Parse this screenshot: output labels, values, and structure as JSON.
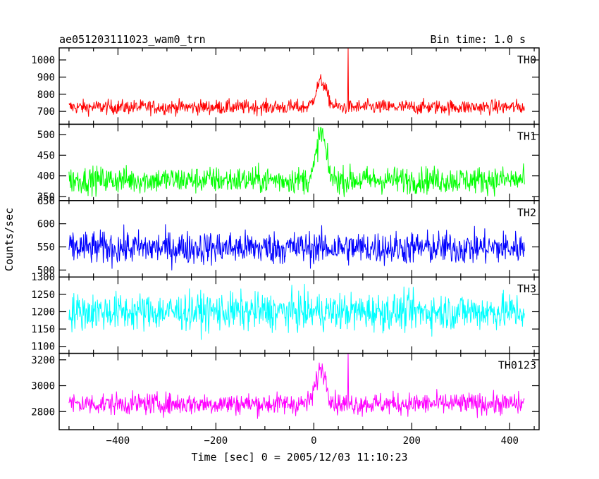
{
  "header": {
    "left_title": "ae051203111023_wam0_trn",
    "right_title": "Bin time: 1.0 s"
  },
  "axes": {
    "ylabel": "Counts/sec",
    "xlabel": "Time [sec] 0 = 2005/12/03 11:10:23"
  },
  "chart_data": {
    "type": "line",
    "title": "ae051203111023_wam0_trn",
    "subtitle": "Bin time: 1.0 s",
    "xlabel": "Time [sec] 0 = 2005/12/03 11:10:23",
    "ylabel": "Counts/sec",
    "xlim": [
      -520,
      460
    ],
    "x_range": [
      -500,
      430
    ],
    "x_step": 1,
    "x_ticks": [
      -400,
      -200,
      0,
      200,
      400
    ],
    "x_tick_labels": [
      "−400",
      "−200",
      "0",
      "200",
      "400"
    ],
    "grid": false,
    "panels": [
      {
        "name": "TH0",
        "color": "#ff0000",
        "ylim": [
          625,
          1070
        ],
        "y_ticks": [
          700,
          800,
          900,
          1000
        ],
        "y_tick_labels": [
          "700",
          "800",
          "900",
          "1000"
        ],
        "baseline": 725,
        "amplitude": 35,
        "burst": {
          "center": 15,
          "peak": 875,
          "width": 15
        },
        "spikes": [
          {
            "x": 70,
            "value": 1070
          }
        ]
      },
      {
        "name": "TH1",
        "color": "#00ff00",
        "ylim": [
          340,
          525
        ],
        "y_ticks": [
          350,
          400,
          450,
          500
        ],
        "y_tick_labels": [
          "350",
          "400",
          "450",
          "500"
        ],
        "baseline": 390,
        "amplitude": 27,
        "burst": {
          "center": 15,
          "peak": 505,
          "width": 13
        },
        "spikes": []
      },
      {
        "name": "TH2",
        "color": "#0000ff",
        "ylim": [
          485,
          650
        ],
        "y_ticks": [
          500,
          550,
          600,
          650
        ],
        "y_tick_labels": [
          "500",
          "550",
          "600",
          "650"
        ],
        "baseline": 548,
        "amplitude": 30,
        "burst": null,
        "spikes": []
      },
      {
        "name": "TH3",
        "color": "#00ffff",
        "ylim": [
          1080,
          1300
        ],
        "y_ticks": [
          1100,
          1150,
          1200,
          1250,
          1300
        ],
        "y_tick_labels": [
          "1100",
          "1150",
          "1200",
          "1250",
          "1300"
        ],
        "baseline": 1200,
        "amplitude": 45,
        "burst": null,
        "spikes": []
      },
      {
        "name": "TH0123",
        "color": "#ff00ff",
        "ylim": [
          2660,
          3250
        ],
        "y_ticks": [
          2800,
          3000,
          3200
        ],
        "y_tick_labels": [
          "2800",
          "3000",
          "3200"
        ],
        "baseline": 2860,
        "amplitude": 70,
        "burst": {
          "center": 15,
          "peak": 3130,
          "width": 15
        },
        "spikes": [
          {
            "x": 70,
            "value": 3250
          }
        ]
      }
    ]
  }
}
